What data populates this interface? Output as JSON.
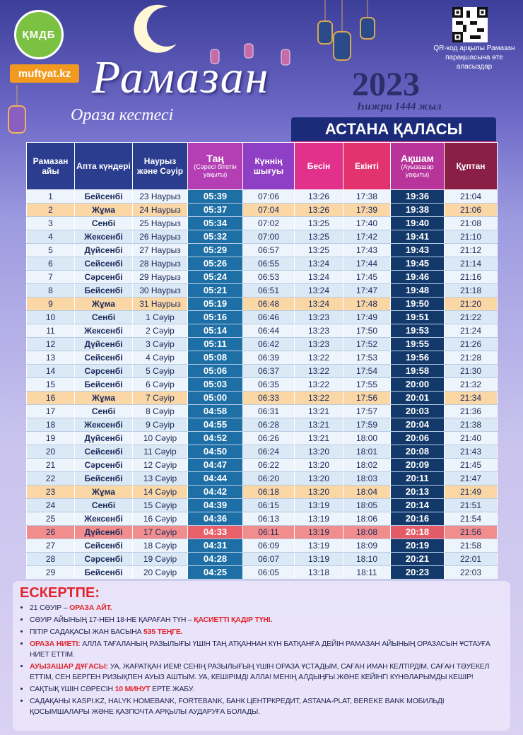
{
  "header": {
    "logo": "ҚМДБ",
    "site": "muftyat.kz",
    "title": "Рамазан",
    "subtitle": "Ораза кестесі",
    "year": "2023",
    "hijri": "Һижри 1444 жыл",
    "qr_caption": "QR-код арқылы Рамазан парақшасына өте аласыздар",
    "city": "АСТАНА ҚАЛАСЫ"
  },
  "table": {
    "columns": [
      {
        "title": "Рамазан айы"
      },
      {
        "title": "Апта күндері"
      },
      {
        "title": "Наурыз және Сәуір"
      },
      {
        "title": "Таң",
        "note": "(Сәресі бітетін уақыты)"
      },
      {
        "title": "Күннің шығуы"
      },
      {
        "title": "Бесін"
      },
      {
        "title": "Екінті"
      },
      {
        "title": "Ақшам",
        "note": "(Ауызашар уақыты)"
      },
      {
        "title": "Құптан"
      }
    ],
    "rows": [
      [
        1,
        "Бейсенбі",
        "23 Наурыз",
        "05:39",
        "07:06",
        "13:26",
        "17:38",
        "19:36",
        "21:04"
      ],
      [
        2,
        "Жұма",
        "24 Наурыз",
        "05:37",
        "07:04",
        "13:26",
        "17:39",
        "19:38",
        "21:06"
      ],
      [
        3,
        "Сенбі",
        "25 Наурыз",
        "05:34",
        "07:02",
        "13:25",
        "17:40",
        "19:40",
        "21:08"
      ],
      [
        4,
        "Жексенбі",
        "26 Наурыз",
        "05:32",
        "07:00",
        "13:25",
        "17:42",
        "19:41",
        "21:10"
      ],
      [
        5,
        "Дүйсенбі",
        "27 Наурыз",
        "05:29",
        "06:57",
        "13:25",
        "17:43",
        "19:43",
        "21:12"
      ],
      [
        6,
        "Сейсенбі",
        "28 Наурыз",
        "05:26",
        "06:55",
        "13:24",
        "17:44",
        "19:45",
        "21:14"
      ],
      [
        7,
        "Сәрсенбі",
        "29 Наурыз",
        "05:24",
        "06:53",
        "13:24",
        "17:45",
        "19:46",
        "21:16"
      ],
      [
        8,
        "Бейсенбі",
        "30 Наурыз",
        "05:21",
        "06:51",
        "13:24",
        "17:47",
        "19:48",
        "21:18"
      ],
      [
        9,
        "Жұма",
        "31 Наурыз",
        "05:19",
        "06:48",
        "13:24",
        "17:48",
        "19:50",
        "21:20"
      ],
      [
        10,
        "Сенбі",
        "1 Сәуір",
        "05:16",
        "06:46",
        "13:23",
        "17:49",
        "19:51",
        "21:22"
      ],
      [
        11,
        "Жексенбі",
        "2 Сәуір",
        "05:14",
        "06:44",
        "13:23",
        "17:50",
        "19:53",
        "21:24"
      ],
      [
        12,
        "Дүйсенбі",
        "3 Сәуір",
        "05:11",
        "06:42",
        "13:23",
        "17:52",
        "19:55",
        "21:26"
      ],
      [
        13,
        "Сейсенбі",
        "4 Сәуір",
        "05:08",
        "06:39",
        "13:22",
        "17:53",
        "19:56",
        "21:28"
      ],
      [
        14,
        "Сәрсенбі",
        "5 Сәуір",
        "05:06",
        "06:37",
        "13:22",
        "17:54",
        "19:58",
        "21:30"
      ],
      [
        15,
        "Бейсенбі",
        "6 Сәуір",
        "05:03",
        "06:35",
        "13:22",
        "17:55",
        "20:00",
        "21:32"
      ],
      [
        16,
        "Жұма",
        "7 Сәуір",
        "05:00",
        "06:33",
        "13:22",
        "17:56",
        "20:01",
        "21:34"
      ],
      [
        17,
        "Сенбі",
        "8 Сәуір",
        "04:58",
        "06:31",
        "13:21",
        "17:57",
        "20:03",
        "21:36"
      ],
      [
        18,
        "Жексенбі",
        "9 Сәуір",
        "04:55",
        "06:28",
        "13:21",
        "17:59",
        "20:04",
        "21:38"
      ],
      [
        19,
        "Дүйсенбі",
        "10 Сәуір",
        "04:52",
        "06:26",
        "13:21",
        "18:00",
        "20:06",
        "21:40"
      ],
      [
        20,
        "Сейсенбі",
        "11 Сәуір",
        "04:50",
        "06:24",
        "13:20",
        "18:01",
        "20:08",
        "21:43"
      ],
      [
        21,
        "Сәрсенбі",
        "12 Сәуір",
        "04:47",
        "06:22",
        "13:20",
        "18:02",
        "20:09",
        "21:45"
      ],
      [
        22,
        "Бейсенбі",
        "13 Сәуір",
        "04:44",
        "06:20",
        "13:20",
        "18:03",
        "20:11",
        "21:47"
      ],
      [
        23,
        "Жұма",
        "14 Сәуір",
        "04:42",
        "06:18",
        "13:20",
        "18:04",
        "20:13",
        "21:49"
      ],
      [
        24,
        "Сенбі",
        "15 Сәуір",
        "04:39",
        "06:15",
        "13:19",
        "18:05",
        "20:14",
        "21:51"
      ],
      [
        25,
        "Жексенбі",
        "16 Сәуір",
        "04:36",
        "06:13",
        "13:19",
        "18:06",
        "20:16",
        "21:54"
      ],
      [
        26,
        "Дүйсенбі",
        "17 Сәуір",
        "04:33",
        "06:11",
        "13:19",
        "18:08",
        "20:18",
        "21:56"
      ],
      [
        27,
        "Сейсенбі",
        "18 Сәуір",
        "04:31",
        "06:09",
        "13:19",
        "18:09",
        "20:19",
        "21:58"
      ],
      [
        28,
        "Сәрсенбі",
        "19 Сәуір",
        "04:28",
        "06:07",
        "13:19",
        "18:10",
        "20:21",
        "22:01"
      ],
      [
        29,
        "Бейсенбі",
        "20 Сәуір",
        "04:25",
        "06:05",
        "13:18",
        "18:11",
        "20:23",
        "22:03"
      ]
    ]
  },
  "notes": {
    "title": "ЕСКЕРТПЕ:",
    "items": [
      [
        {
          "text": "21 СӘУІР – "
        },
        {
          "text": "ОРАЗА АЙТ.",
          "highlight": true
        }
      ],
      [
        {
          "text": "СӘУІР АЙЫНЫҢ 17-НЕН 18-НЕ ҚАРАҒАН ТҮН – "
        },
        {
          "text": "ҚАСИЕТТІ ҚАДІР ТҮНІ.",
          "highlight": true
        }
      ],
      [
        {
          "text": "ПІТІР САДАҚАСЫ ЖАН БАСЫНА "
        },
        {
          "text": "535 ТЕҢГЕ.",
          "highlight": true
        }
      ],
      [
        {
          "text": "ОРАЗА НИЕТІ:",
          "highlight": true
        },
        {
          "text": " АЛЛА ТАҒАЛАНЫҢ РАЗЫЛЫҒЫ ҮШІН ТАҢ АТҚАННАН КҮН БАТҚАНҒА ДЕЙІН РАМАЗАН АЙЫНЫҢ ОРАЗАСЫН ҰСТАУҒА НИЕТ ЕТТІМ."
        }
      ],
      [
        {
          "text": "АУЫЗАШАР ДҰҒАСЫ:",
          "highlight": true
        },
        {
          "text": " УА, ЖАРАТҚАН ИЕМ! СЕНІҢ РАЗЫЛЫҒЫҢ ҮШІН ОРАЗА ҰСТАДЫМ, САҒАН ИМАН КЕЛТІРДІМ, САҒАН ТӘУЕКЕЛ ЕТТІМ, СЕН БЕРГЕН РИЗЫҚПЕН АУЫЗ АШТЫМ. УА, КЕШІРІМДІ АЛЛА! МЕНІҢ АЛДЫҢҒЫ ЖӘНЕ КЕЙІНГІ КҮНӘЛАРЫМДЫ КЕШІР!"
        }
      ],
      [
        {
          "text": "САҚТЫҚ ҮШІН СӘРЕСІН "
        },
        {
          "text": "10 МИНУТ",
          "highlight": true
        },
        {
          "text": " ЕРТЕ ЖАБУ."
        }
      ],
      [
        {
          "text": "САДАҚАНЫ KASPI.KZ, HALYK HOMEBANK, FORTEBANK, БАНК ЦЕНТРКРЕДИТ, ASTANA-PLAT, BEREKE BANK МОБИЛЬДІ ҚОСЫМШАЛАРЫ ЖӘНЕ ҚАЗПОЧТА АРҚЫЛЫ АУДАРУҒА БОЛАДЫ."
        }
      ]
    ]
  }
}
